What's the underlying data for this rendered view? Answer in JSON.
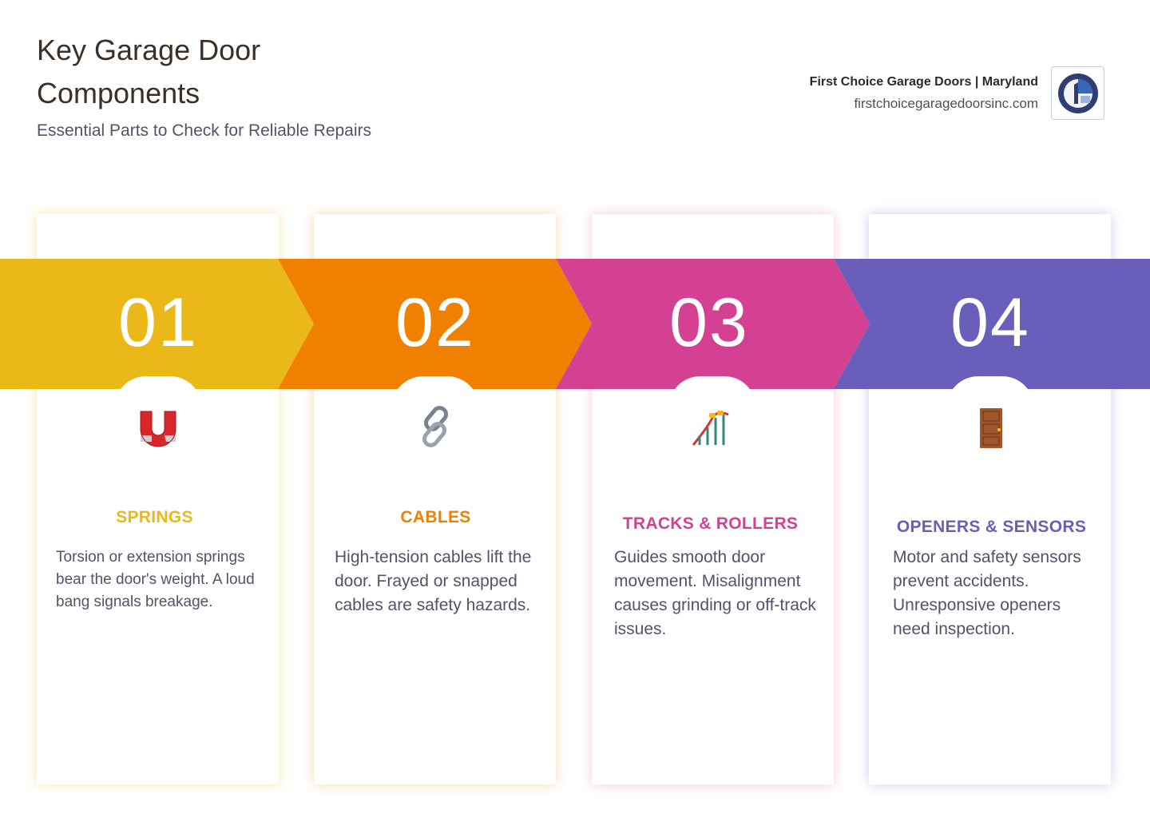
{
  "header": {
    "title": "Key Garage Door Components",
    "subtitle": "Essential Parts to Check for Reliable Repairs"
  },
  "brand": {
    "name": "First Choice Garage Doors | Maryland",
    "url": "firstchoicegaragedoorsinc.com"
  },
  "colors": {
    "step1": "#EBB81A",
    "step2": "#F08000",
    "step3": "#D44092",
    "step4": "#6A5EBB"
  },
  "steps": [
    {
      "number": "01",
      "icon": "magnet-icon",
      "title": "SPRINGS",
      "text": "Torsion or extension springs bear the door's weight. A loud bang signals breakage."
    },
    {
      "number": "02",
      "icon": "chain-link-icon",
      "title": "CABLES",
      "text": "High-tension cables lift the door. Frayed or snapped cables are safety hazards."
    },
    {
      "number": "03",
      "icon": "roller-coaster-icon",
      "title": "TRACKS & ROLLERS",
      "text": "Guides smooth door movement. Misalignment causes grinding or off-track issues."
    },
    {
      "number": "04",
      "icon": "door-icon",
      "title": "OPENERS & SENSORS",
      "text": "Motor and safety sensors prevent accidents. Unresponsive openers need inspection."
    }
  ]
}
